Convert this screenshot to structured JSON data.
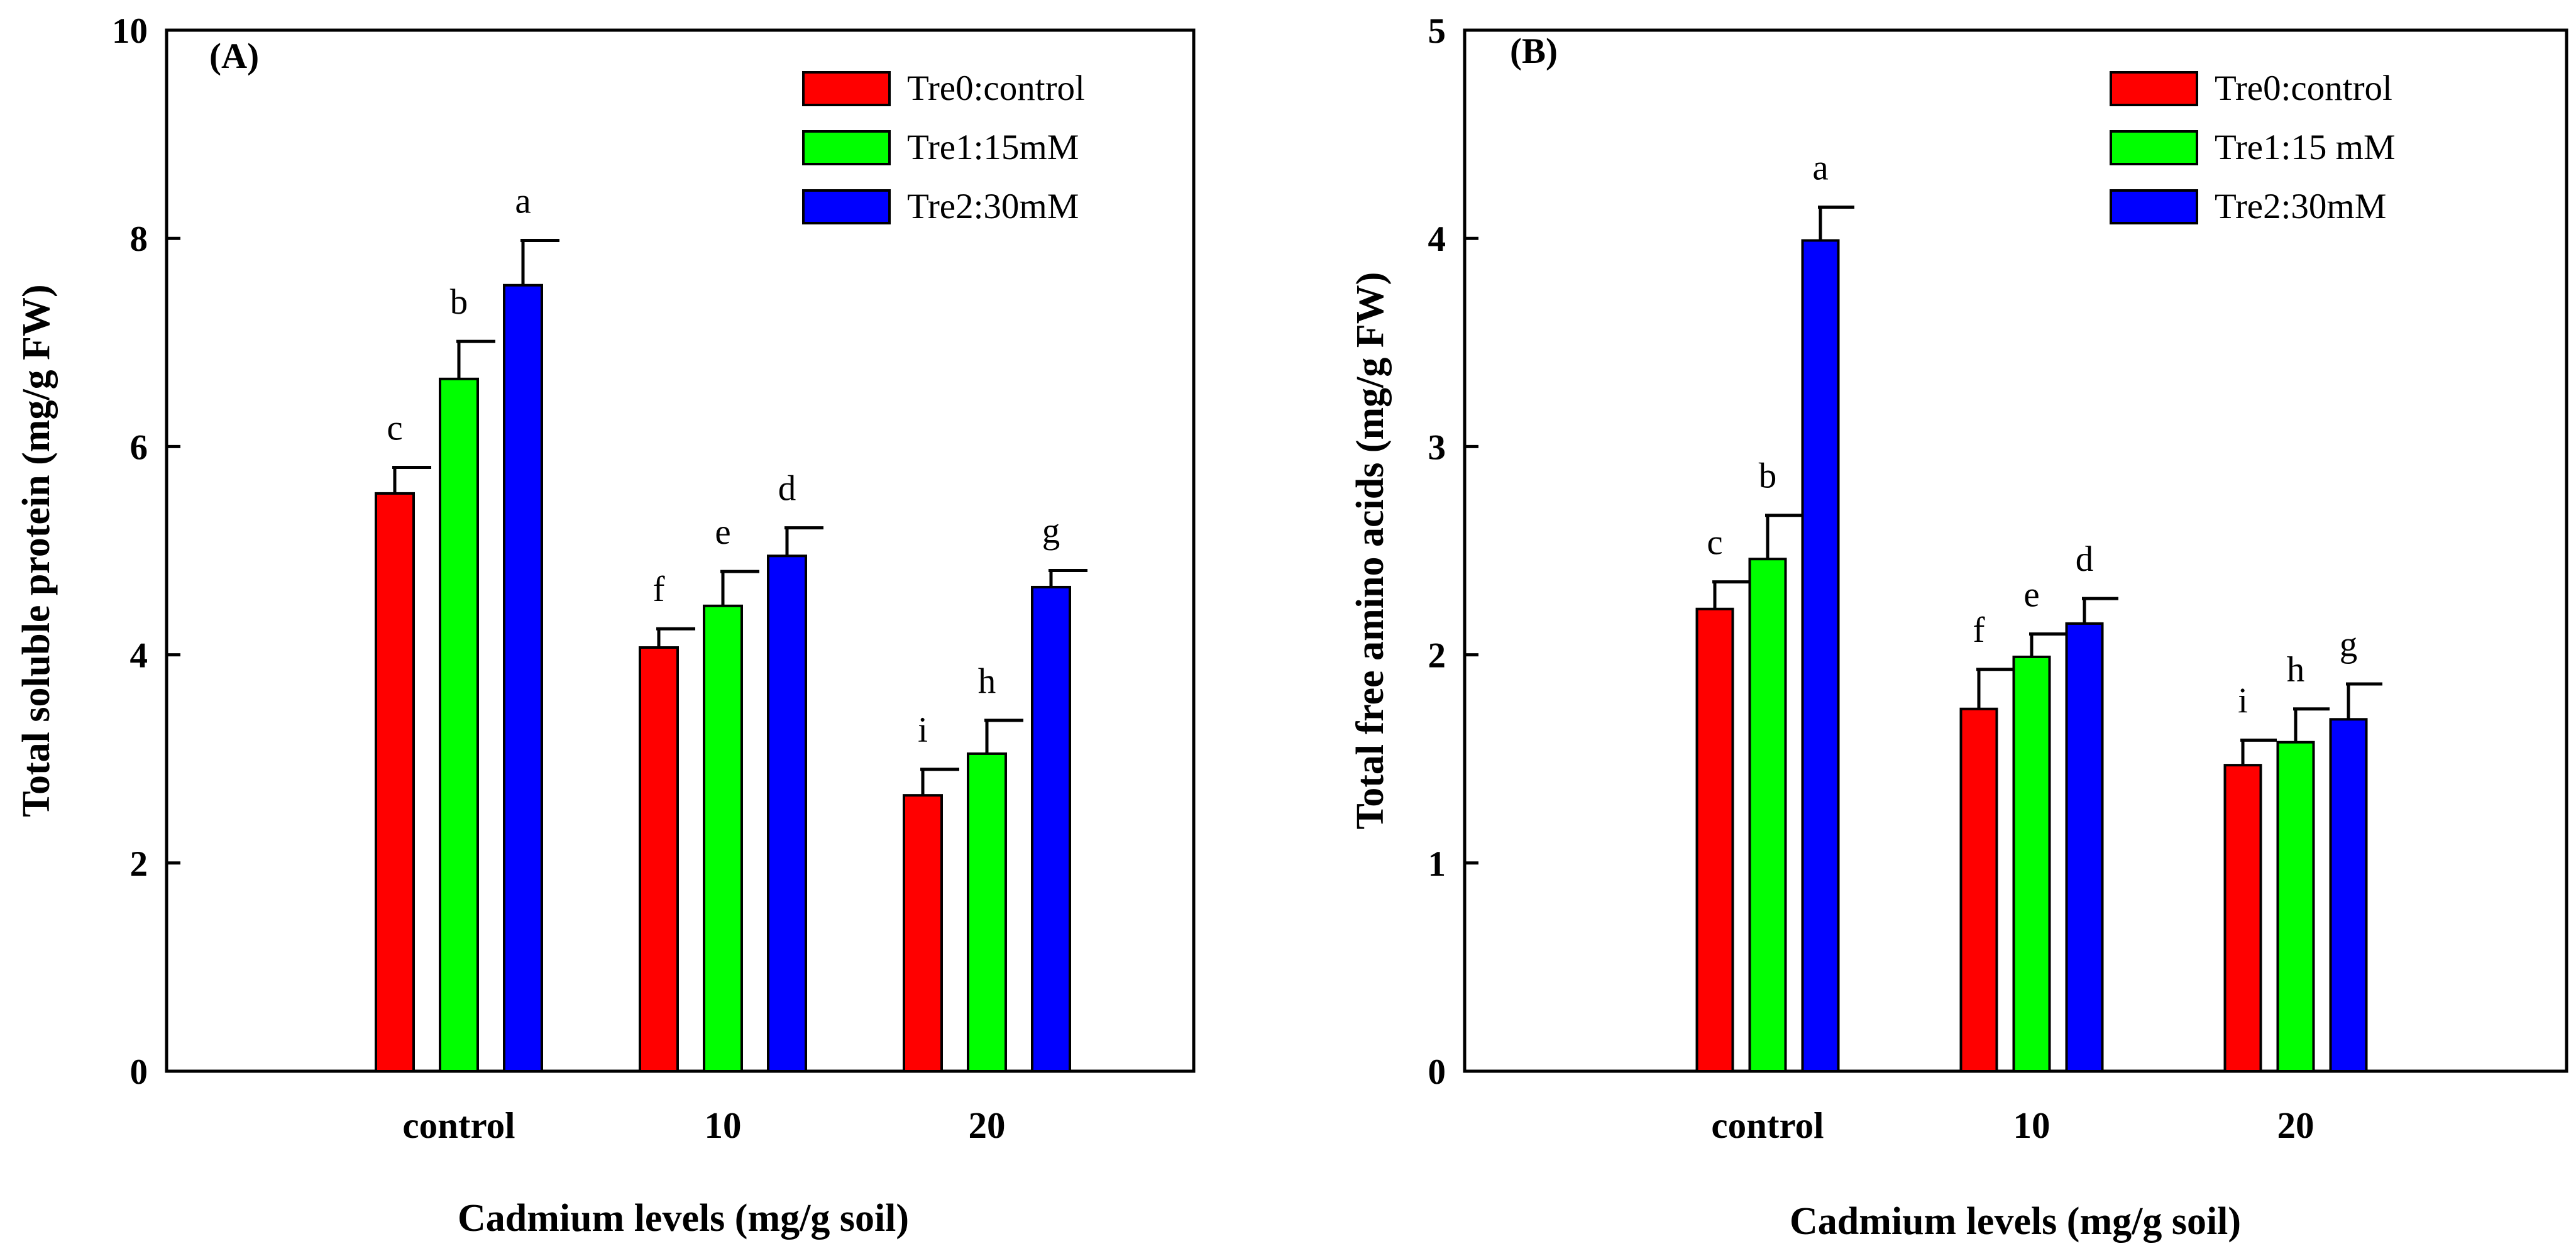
{
  "chart_data": [
    {
      "type": "bar",
      "panel": "(A)",
      "xlabel": "Cadmium levels (mg/g soil)",
      "ylabel": "Total soluble protein (mg/g FW)",
      "categories": [
        "control",
        "10",
        "20"
      ],
      "ylim": [
        0,
        10
      ],
      "yticks": [
        "0",
        "2",
        "4",
        "6",
        "8",
        "10"
      ],
      "legend_position": "top-right",
      "series": [
        {
          "name": "Tre0:control",
          "color": "#ff0000",
          "values": [
            5.55,
            4.07,
            2.65
          ],
          "errors": [
            0.25,
            0.18,
            0.25
          ],
          "letters": [
            "c",
            "f",
            "i"
          ]
        },
        {
          "name": "Tre1:15mM",
          "color": "#00ff00",
          "values": [
            6.65,
            4.47,
            3.05
          ],
          "errors": [
            0.36,
            0.33,
            0.32
          ],
          "letters": [
            "b",
            "e",
            "h"
          ]
        },
        {
          "name": "Tre2:30mM",
          "color": "#0000ff",
          "values": [
            7.55,
            4.95,
            4.65
          ],
          "errors": [
            0.43,
            0.27,
            0.16
          ],
          "letters": [
            "a",
            "d",
            "g"
          ]
        }
      ]
    },
    {
      "type": "bar",
      "panel": "(B)",
      "xlabel": "Cadmium levels (mg/g soil)",
      "ylabel": "Total free amino acids (mg/g FW)",
      "categories": [
        "control",
        "10",
        "20"
      ],
      "ylim": [
        0,
        5
      ],
      "yticks": [
        "0",
        "1",
        "2",
        "3",
        "4",
        "5"
      ],
      "legend_position": "top-right",
      "series": [
        {
          "name": "Tre0:control",
          "color": "#ff0000",
          "values": [
            2.22,
            1.74,
            1.47
          ],
          "errors": [
            0.13,
            0.19,
            0.12
          ],
          "letters": [
            "c",
            "f",
            "i"
          ]
        },
        {
          "name": "Tre1:15 mM",
          "color": "#00ff00",
          "values": [
            2.46,
            1.99,
            1.58
          ],
          "errors": [
            0.21,
            0.11,
            0.16
          ],
          "letters": [
            "b",
            "e",
            "h"
          ]
        },
        {
          "name": "Tre2:30mM",
          "color": "#0000ff",
          "values": [
            3.99,
            2.15,
            1.69
          ],
          "errors": [
            0.16,
            0.12,
            0.17
          ],
          "letters": [
            "a",
            "d",
            "g"
          ]
        }
      ]
    }
  ]
}
